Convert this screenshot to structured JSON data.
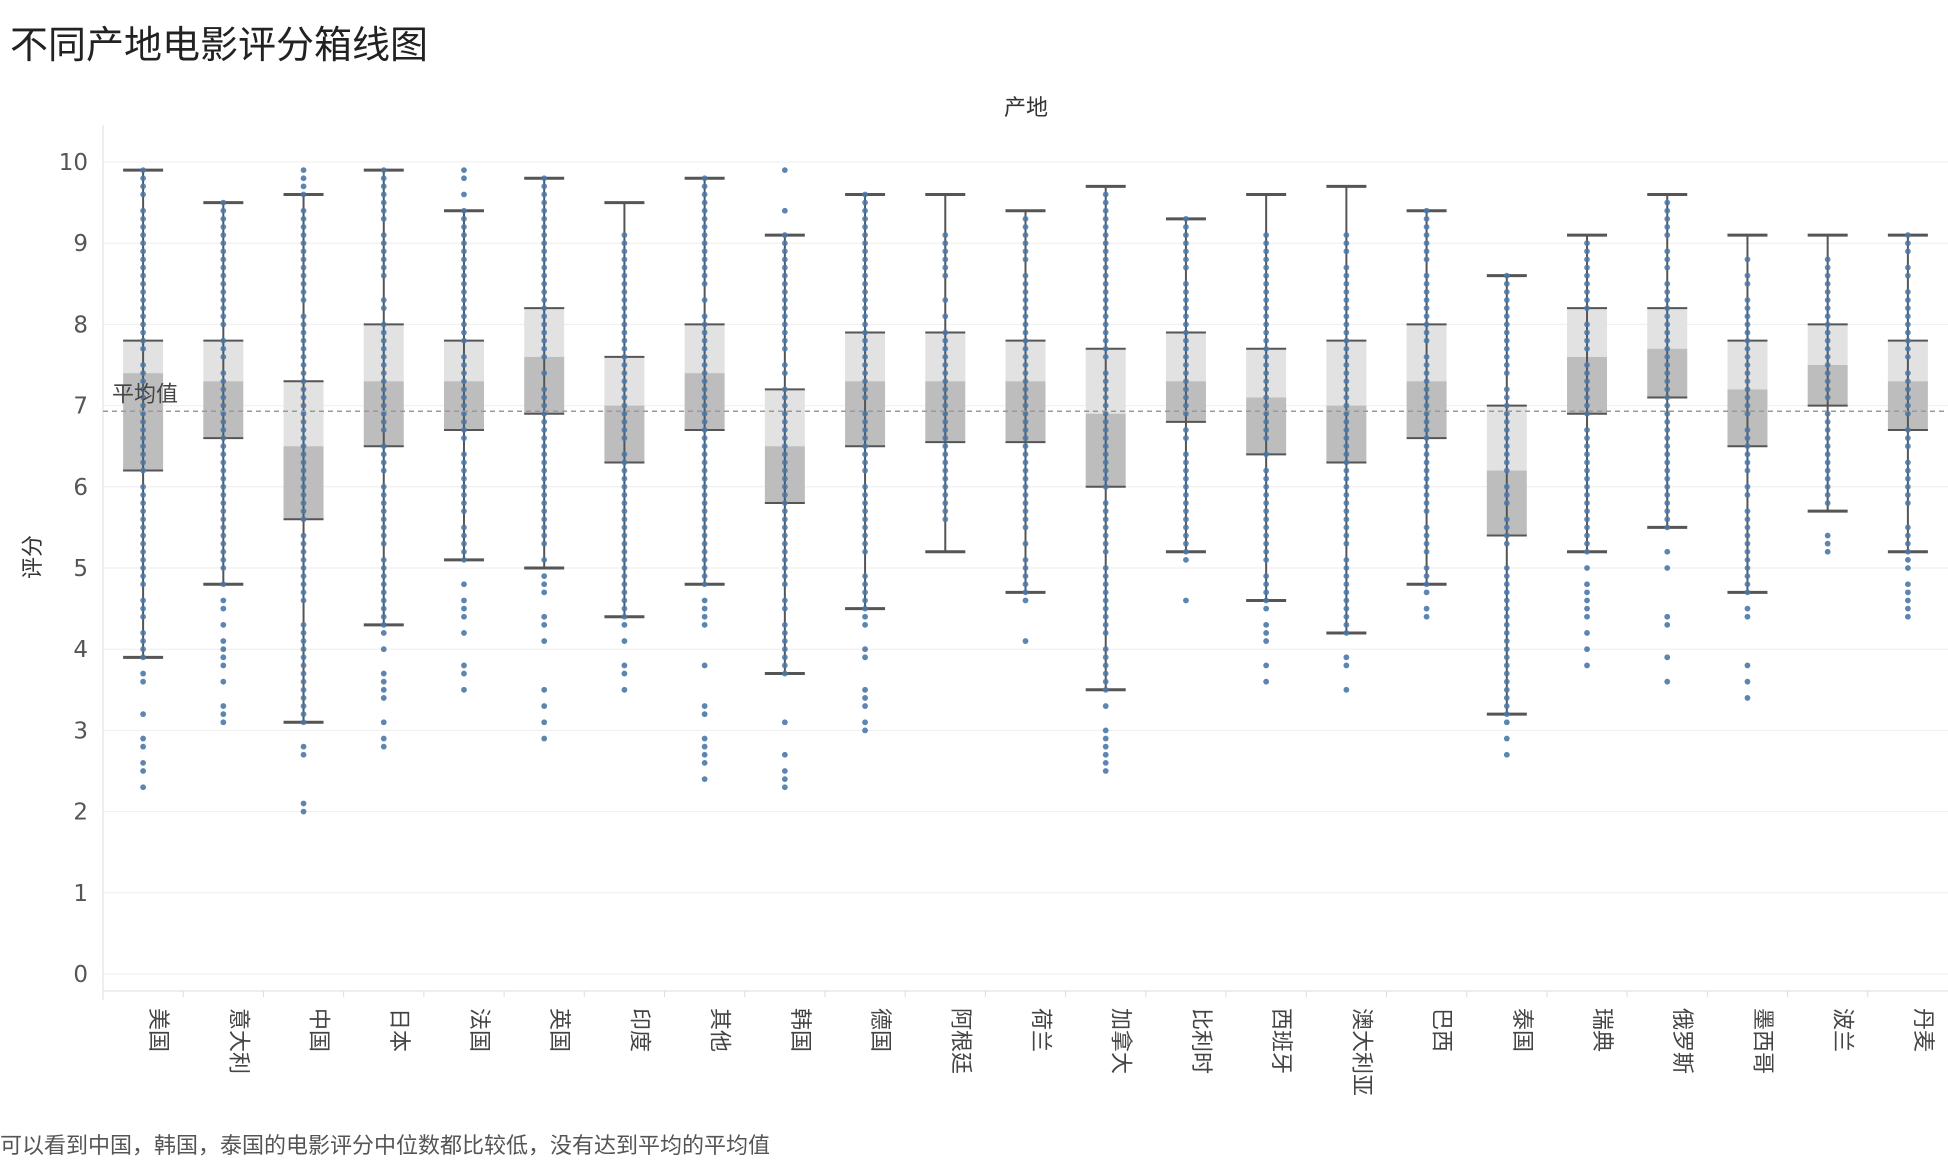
{
  "title": "不同产地电影评分箱线图",
  "caption": "可以看到中国，韩国，泰国的电影评分中位数都比较低，没有达到平均的平均值",
  "chart_data": {
    "type": "boxplot",
    "column_header": "产地",
    "ylabel": "评分",
    "ylim": [
      0,
      10
    ],
    "yticks": [
      0,
      1,
      2,
      3,
      4,
      5,
      6,
      7,
      8,
      9,
      10
    ],
    "reference_line": {
      "label": "平均值",
      "value": 6.93
    },
    "grid": true,
    "colors": {
      "dots": "#4a78a8",
      "box_upper": "#e2e2e2",
      "box_lower": "#bdbdbd",
      "whisker": "#555555",
      "ref_line": "#999999"
    },
    "categories": [
      {
        "name": "美国",
        "whisker_low": 3.9,
        "q1": 6.2,
        "median": 7.4,
        "q3": 7.8,
        "whisker_high": 9.9,
        "data_min": 2.3,
        "data_max": 9.9
      },
      {
        "name": "意大利",
        "whisker_low": 4.8,
        "q1": 6.6,
        "median": 7.3,
        "q3": 7.8,
        "whisker_high": 9.5,
        "data_min": 3.1,
        "data_max": 9.5
      },
      {
        "name": "中国",
        "whisker_low": 3.1,
        "q1": 5.6,
        "median": 6.5,
        "q3": 7.3,
        "whisker_high": 9.6,
        "data_min": 2.0,
        "data_max": 9.9
      },
      {
        "name": "日本",
        "whisker_low": 4.3,
        "q1": 6.5,
        "median": 7.3,
        "q3": 8.0,
        "whisker_high": 9.9,
        "data_min": 2.8,
        "data_max": 9.9
      },
      {
        "name": "法国",
        "whisker_low": 5.1,
        "q1": 6.7,
        "median": 7.3,
        "q3": 7.8,
        "whisker_high": 9.4,
        "data_min": 3.5,
        "data_max": 9.9
      },
      {
        "name": "英国",
        "whisker_low": 5.0,
        "q1": 6.9,
        "median": 7.6,
        "q3": 8.2,
        "whisker_high": 9.8,
        "data_min": 2.9,
        "data_max": 9.8
      },
      {
        "name": "印度",
        "whisker_low": 4.4,
        "q1": 6.3,
        "median": 7.0,
        "q3": 7.6,
        "whisker_high": 9.5,
        "data_min": 3.5,
        "data_max": 9.1
      },
      {
        "name": "其他",
        "whisker_low": 4.8,
        "q1": 6.7,
        "median": 7.4,
        "q3": 8.0,
        "whisker_high": 9.8,
        "data_min": 2.4,
        "data_max": 9.8
      },
      {
        "name": "韩国",
        "whisker_low": 3.7,
        "q1": 5.8,
        "median": 6.5,
        "q3": 7.2,
        "whisker_high": 9.1,
        "data_min": 2.3,
        "data_max": 9.9
      },
      {
        "name": "德国",
        "whisker_low": 4.5,
        "q1": 6.5,
        "median": 7.3,
        "q3": 7.9,
        "whisker_high": 9.6,
        "data_min": 3.0,
        "data_max": 9.6
      },
      {
        "name": "阿根廷",
        "whisker_low": 5.2,
        "q1": 6.55,
        "median": 7.3,
        "q3": 7.9,
        "whisker_high": 9.6,
        "data_min": 5.6,
        "data_max": 9.1
      },
      {
        "name": "荷兰",
        "whisker_low": 4.7,
        "q1": 6.55,
        "median": 7.3,
        "q3": 7.8,
        "whisker_high": 9.4,
        "data_min": 4.1,
        "data_max": 9.3
      },
      {
        "name": "加拿大",
        "whisker_low": 3.5,
        "q1": 6.0,
        "median": 6.9,
        "q3": 7.7,
        "whisker_high": 9.7,
        "data_min": 2.5,
        "data_max": 9.6
      },
      {
        "name": "比利时",
        "whisker_low": 5.2,
        "q1": 6.8,
        "median": 7.3,
        "q3": 7.9,
        "whisker_high": 9.3,
        "data_min": 4.6,
        "data_max": 9.3
      },
      {
        "name": "西班牙",
        "whisker_low": 4.6,
        "q1": 6.4,
        "median": 7.1,
        "q3": 7.7,
        "whisker_high": 9.6,
        "data_min": 3.6,
        "data_max": 9.1
      },
      {
        "name": "澳大利亚",
        "whisker_low": 4.2,
        "q1": 6.3,
        "median": 7.0,
        "q3": 7.8,
        "whisker_high": 9.7,
        "data_min": 3.5,
        "data_max": 9.1
      },
      {
        "name": "巴西",
        "whisker_low": 4.8,
        "q1": 6.6,
        "median": 7.3,
        "q3": 8.0,
        "whisker_high": 9.4,
        "data_min": 4.4,
        "data_max": 9.4
      },
      {
        "name": "泰国",
        "whisker_low": 3.2,
        "q1": 5.4,
        "median": 6.2,
        "q3": 7.0,
        "whisker_high": 8.6,
        "data_min": 2.7,
        "data_max": 8.6
      },
      {
        "name": "瑞典",
        "whisker_low": 5.2,
        "q1": 6.9,
        "median": 7.6,
        "q3": 8.2,
        "whisker_high": 9.1,
        "data_min": 3.8,
        "data_max": 9.0
      },
      {
        "name": "俄罗斯",
        "whisker_low": 5.5,
        "q1": 7.1,
        "median": 7.7,
        "q3": 8.2,
        "whisker_high": 9.6,
        "data_min": 3.6,
        "data_max": 9.5
      },
      {
        "name": "墨西哥",
        "whisker_low": 4.7,
        "q1": 6.5,
        "median": 7.2,
        "q3": 7.8,
        "whisker_high": 9.1,
        "data_min": 3.4,
        "data_max": 8.8
      },
      {
        "name": "波兰",
        "whisker_low": 5.7,
        "q1": 7.0,
        "median": 7.5,
        "q3": 8.0,
        "whisker_high": 9.1,
        "data_min": 5.2,
        "data_max": 8.8
      },
      {
        "name": "丹麦",
        "whisker_low": 5.2,
        "q1": 6.7,
        "median": 7.3,
        "q3": 7.8,
        "whisker_high": 9.1,
        "data_min": 4.4,
        "data_max": 9.1
      }
    ]
  }
}
